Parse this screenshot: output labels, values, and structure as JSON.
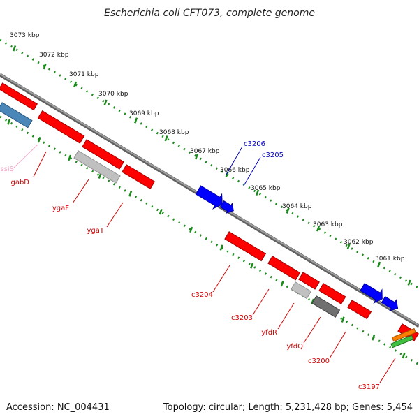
{
  "title": "Escherichia coli CFT073, complete genome",
  "accession": "Accession: NC_004431",
  "topology": "Topology: circular; Length: 5,231,428 bp; Genes: 5,454",
  "scale_labels": [
    "3073 kbp",
    "3072 kbp",
    "3071 kbp",
    "3070 kbp",
    "3069 kbp",
    "3068 kbp",
    "3067 kbp",
    "3066 kbp",
    "3065 kbp",
    "3064 kbp",
    "3063 kbp",
    "3062 kbp",
    "3061 kbp"
  ],
  "gene_labels": [
    {
      "text": "cssiS",
      "color": "#f2a6c8"
    },
    {
      "text": "gabD",
      "color": "#d40000"
    },
    {
      "text": "ygaF",
      "color": "#d40000"
    },
    {
      "text": "ygaT",
      "color": "#d40000"
    },
    {
      "text": "c3206",
      "color": "#0000c0"
    },
    {
      "text": "c3205",
      "color": "#0000c0"
    },
    {
      "text": "c3204",
      "color": "#d40000"
    },
    {
      "text": "c3203",
      "color": "#d40000"
    },
    {
      "text": "yfdR",
      "color": "#d40000"
    },
    {
      "text": "yfdQ",
      "color": "#d40000"
    },
    {
      "text": "c3200",
      "color": "#d40000"
    },
    {
      "text": "c3197",
      "color": "#d40000"
    }
  ],
  "colors": {
    "backbone": "#808080",
    "scale_ticks": "#1a8a1a",
    "cds_red": "#ff0000",
    "cds_blue": "#0000ff",
    "cds_steel": "#4a86b8",
    "cds_lightgray": "#c0c0c0",
    "cds_darkgray": "#707070",
    "cds_orange": "#ff8000",
    "cds_green": "#40c040"
  }
}
